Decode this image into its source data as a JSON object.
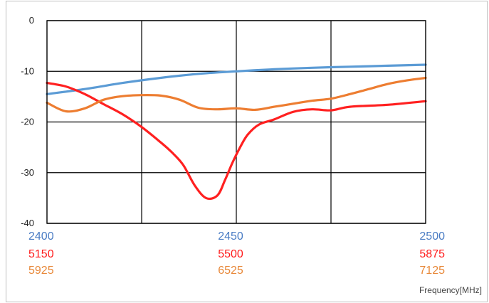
{
  "chart_data": {
    "type": "line",
    "xlabel": "Frequency[MHz]",
    "ylabel": "",
    "xlim": [
      0,
      1
    ],
    "ylim": [
      -40,
      0
    ],
    "yticks": [
      "0",
      "-10",
      "-20",
      "-30",
      "-40"
    ],
    "ytick_values": [
      0,
      -10,
      -20,
      -30,
      -40
    ],
    "grid": true,
    "x_tick_rows": [
      {
        "color": "#4a7cc4",
        "labels": [
          "2400",
          "2450",
          "2500"
        ]
      },
      {
        "color": "#ff1a1a",
        "labels": [
          "5150",
          "5500",
          "5875"
        ]
      },
      {
        "color": "#e8893a",
        "labels": [
          "5925",
          "6525",
          "7125"
        ]
      }
    ],
    "series": [
      {
        "color": "#5b9bd5",
        "x": [
          0,
          0.1,
          0.2,
          0.3,
          0.4,
          0.5,
          0.6,
          0.7,
          0.8,
          0.9,
          1.0
        ],
        "y": [
          -14.5,
          -13.5,
          -12.3,
          -11.3,
          -10.5,
          -10.0,
          -9.6,
          -9.3,
          -9.1,
          -8.9,
          -8.7
        ]
      },
      {
        "color": "#ff2020",
        "x": [
          0,
          0.05,
          0.1,
          0.15,
          0.2,
          0.25,
          0.3,
          0.33,
          0.36,
          0.39,
          0.42,
          0.45,
          0.47,
          0.49,
          0.51,
          0.53,
          0.56,
          0.6,
          0.65,
          0.7,
          0.75,
          0.8,
          0.9,
          1.0
        ],
        "y": [
          -12.3,
          -13.0,
          -14.5,
          -16.5,
          -18.5,
          -21.0,
          -24.0,
          -26.0,
          -28.5,
          -32.5,
          -35.0,
          -34.5,
          -31.5,
          -28.0,
          -25.0,
          -22.5,
          -20.5,
          -19.5,
          -18.0,
          -17.5,
          -17.7,
          -17.0,
          -16.6,
          -15.9
        ]
      },
      {
        "color": "#ed7d31",
        "x": [
          0,
          0.05,
          0.1,
          0.15,
          0.2,
          0.25,
          0.3,
          0.35,
          0.4,
          0.45,
          0.5,
          0.55,
          0.6,
          0.65,
          0.7,
          0.75,
          0.8,
          0.85,
          0.9,
          0.95,
          1.0
        ],
        "y": [
          -16.2,
          -17.9,
          -17.3,
          -15.6,
          -14.9,
          -14.7,
          -14.8,
          -15.6,
          -17.2,
          -17.5,
          -17.3,
          -17.6,
          -17.0,
          -16.4,
          -15.8,
          -15.4,
          -14.5,
          -13.5,
          -12.5,
          -11.8,
          -11.3
        ]
      }
    ]
  }
}
